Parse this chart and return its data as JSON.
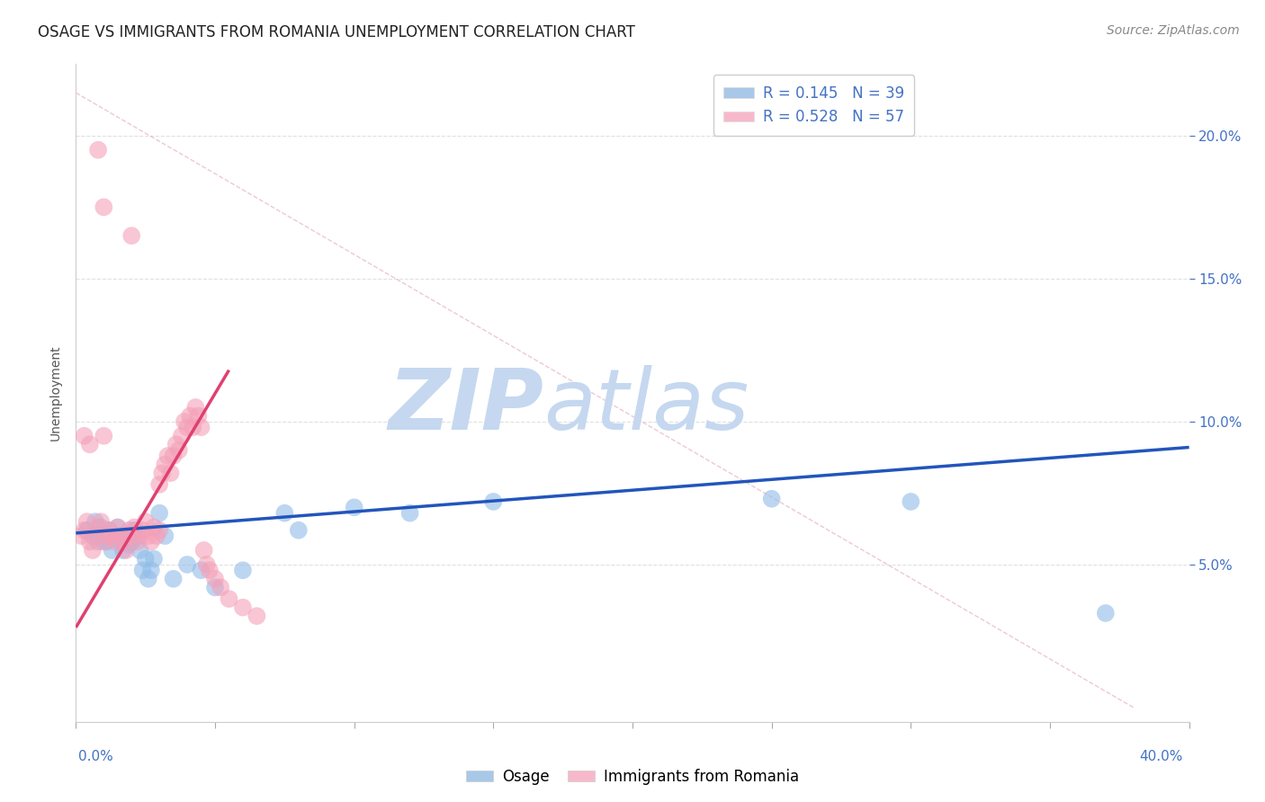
{
  "title": "OSAGE VS IMMIGRANTS FROM ROMANIA UNEMPLOYMENT CORRELATION CHART",
  "source": "Source: ZipAtlas.com",
  "ylabel": "Unemployment",
  "right_yticks": [
    0.05,
    0.1,
    0.15,
    0.2
  ],
  "right_yticklabels": [
    "5.0%",
    "10.0%",
    "15.0%",
    "20.0%"
  ],
  "xlim": [
    0.0,
    0.4
  ],
  "ylim": [
    -0.005,
    0.225
  ],
  "watermark_zip": "ZIP",
  "watermark_atlas": "atlas",
  "watermark_color_zip": "#c8d8ee",
  "watermark_color_atlas": "#c8d8ee",
  "osage_color": "#90bce8",
  "romania_color": "#f4a0b8",
  "osage_scatter": [
    [
      0.004,
      0.062
    ],
    [
      0.006,
      0.06
    ],
    [
      0.007,
      0.065
    ],
    [
      0.008,
      0.058
    ],
    [
      0.009,
      0.063
    ],
    [
      0.01,
      0.06
    ],
    [
      0.011,
      0.058
    ],
    [
      0.012,
      0.062
    ],
    [
      0.013,
      0.055
    ],
    [
      0.014,
      0.06
    ],
    [
      0.015,
      0.063
    ],
    [
      0.016,
      0.058
    ],
    [
      0.017,
      0.055
    ],
    [
      0.018,
      0.06
    ],
    [
      0.019,
      0.057
    ],
    [
      0.02,
      0.058
    ],
    [
      0.021,
      0.062
    ],
    [
      0.022,
      0.06
    ],
    [
      0.023,
      0.055
    ],
    [
      0.024,
      0.048
    ],
    [
      0.025,
      0.052
    ],
    [
      0.026,
      0.045
    ],
    [
      0.027,
      0.048
    ],
    [
      0.028,
      0.052
    ],
    [
      0.03,
      0.068
    ],
    [
      0.032,
      0.06
    ],
    [
      0.035,
      0.045
    ],
    [
      0.04,
      0.05
    ],
    [
      0.045,
      0.048
    ],
    [
      0.05,
      0.042
    ],
    [
      0.06,
      0.048
    ],
    [
      0.075,
      0.068
    ],
    [
      0.08,
      0.062
    ],
    [
      0.1,
      0.07
    ],
    [
      0.12,
      0.068
    ],
    [
      0.15,
      0.072
    ],
    [
      0.25,
      0.073
    ],
    [
      0.3,
      0.072
    ],
    [
      0.37,
      0.033
    ]
  ],
  "romania_scatter": [
    [
      0.002,
      0.06
    ],
    [
      0.003,
      0.062
    ],
    [
      0.004,
      0.065
    ],
    [
      0.005,
      0.058
    ],
    [
      0.006,
      0.055
    ],
    [
      0.007,
      0.06
    ],
    [
      0.008,
      0.063
    ],
    [
      0.009,
      0.065
    ],
    [
      0.01,
      0.058
    ],
    [
      0.011,
      0.06
    ],
    [
      0.012,
      0.062
    ],
    [
      0.013,
      0.06
    ],
    [
      0.014,
      0.058
    ],
    [
      0.015,
      0.063
    ],
    [
      0.016,
      0.06
    ],
    [
      0.017,
      0.058
    ],
    [
      0.018,
      0.055
    ],
    [
      0.019,
      0.062
    ],
    [
      0.02,
      0.06
    ],
    [
      0.021,
      0.063
    ],
    [
      0.022,
      0.058
    ],
    [
      0.023,
      0.06
    ],
    [
      0.024,
      0.062
    ],
    [
      0.025,
      0.065
    ],
    [
      0.026,
      0.06
    ],
    [
      0.027,
      0.058
    ],
    [
      0.028,
      0.063
    ],
    [
      0.029,
      0.06
    ],
    [
      0.03,
      0.078
    ],
    [
      0.031,
      0.082
    ],
    [
      0.032,
      0.085
    ],
    [
      0.033,
      0.088
    ],
    [
      0.034,
      0.082
    ],
    [
      0.035,
      0.088
    ],
    [
      0.036,
      0.092
    ],
    [
      0.037,
      0.09
    ],
    [
      0.038,
      0.095
    ],
    [
      0.039,
      0.1
    ],
    [
      0.04,
      0.098
    ],
    [
      0.041,
      0.102
    ],
    [
      0.042,
      0.098
    ],
    [
      0.043,
      0.105
    ],
    [
      0.044,
      0.102
    ],
    [
      0.045,
      0.098
    ],
    [
      0.046,
      0.055
    ],
    [
      0.047,
      0.05
    ],
    [
      0.048,
      0.048
    ],
    [
      0.05,
      0.045
    ],
    [
      0.052,
      0.042
    ],
    [
      0.055,
      0.038
    ],
    [
      0.06,
      0.035
    ],
    [
      0.065,
      0.032
    ],
    [
      0.003,
      0.095
    ],
    [
      0.005,
      0.092
    ],
    [
      0.008,
      0.195
    ],
    [
      0.01,
      0.175
    ],
    [
      0.02,
      0.165
    ],
    [
      0.01,
      0.095
    ],
    [
      0.03,
      0.062
    ]
  ],
  "osage_line": {
    "x0": 0.0,
    "y0": 0.061,
    "x1": 0.4,
    "y1": 0.091
  },
  "romania_line": {
    "x0": 0.0,
    "y0": 0.028,
    "x1": 0.055,
    "y1": 0.118
  },
  "diag_line": {
    "x0": 0.0,
    "y0": 0.215,
    "x1": 0.38,
    "y1": 0.0
  },
  "title_fontsize": 12,
  "axis_label_fontsize": 10,
  "tick_fontsize": 11,
  "legend_fontsize": 12,
  "source_fontsize": 10
}
